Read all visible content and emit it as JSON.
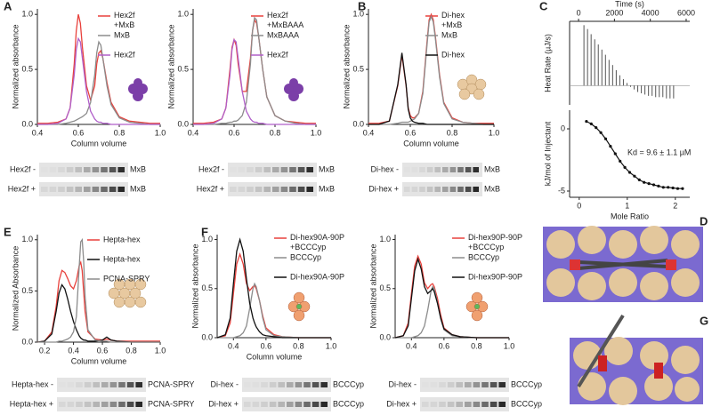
{
  "panel_labels": [
    "A",
    "B",
    "C",
    "D",
    "E",
    "F",
    "G"
  ],
  "chart_data": [
    {
      "type": "line",
      "x": [
        0.4,
        0.45,
        0.5,
        0.54,
        0.56,
        0.58,
        0.59,
        0.6,
        0.61,
        0.62,
        0.64,
        0.66,
        0.68,
        0.69,
        0.7,
        0.71,
        0.72,
        0.74,
        0.76,
        0.8,
        0.85,
        0.9,
        0.95,
        1.0
      ],
      "xlim": [
        0.4,
        1.0
      ],
      "ylim": [
        0,
        1.05
      ],
      "xticks": [
        0.4,
        0.6,
        0.8,
        {
          "value": 1,
          "label": "1.0"
        }
      ],
      "yticks": [
        {
          "value": 0,
          "label": "0.0"
        },
        0.5,
        {
          "value": 1,
          "label": "1.0"
        }
      ],
      "xlabel": "Column volume",
      "ylabel": "Normalized absorbance",
      "series": [
        {
          "name": "Hex2f +MxB",
          "color": "#e8413c",
          "values": [
            0.01,
            0.01,
            0.02,
            0.05,
            0.15,
            0.55,
            0.85,
            1.0,
            0.92,
            0.7,
            0.35,
            0.22,
            0.35,
            0.55,
            0.65,
            0.67,
            0.6,
            0.38,
            0.2,
            0.07,
            0.03,
            0.02,
            0.01,
            0.01
          ]
        },
        {
          "name": "MxB",
          "color": "#8c8c8c",
          "values": [
            0,
            0,
            0,
            0.01,
            0.02,
            0.03,
            0.04,
            0.05,
            0.06,
            0.07,
            0.1,
            0.2,
            0.45,
            0.65,
            0.75,
            0.72,
            0.6,
            0.35,
            0.18,
            0.06,
            0.02,
            0.01,
            0,
            0
          ]
        },
        {
          "name": "Hex2f",
          "color": "#b05fc9",
          "values": [
            0,
            0,
            0.01,
            0.05,
            0.15,
            0.45,
            0.68,
            0.78,
            0.75,
            0.6,
            0.3,
            0.12,
            0.05,
            0.03,
            0.02,
            0.02,
            0.01,
            0.01,
            0,
            0,
            0,
            0,
            0,
            0
          ]
        }
      ]
    },
    {
      "type": "line",
      "x": [
        0.4,
        0.45,
        0.5,
        0.54,
        0.56,
        0.58,
        0.59,
        0.6,
        0.61,
        0.62,
        0.64,
        0.66,
        0.68,
        0.69,
        0.7,
        0.71,
        0.72,
        0.74,
        0.76,
        0.8,
        0.85,
        0.9,
        0.95,
        1.0
      ],
      "xlim": [
        0.4,
        1.0
      ],
      "ylim": [
        0,
        1.05
      ],
      "xticks": [
        0.4,
        0.6,
        0.8,
        {
          "value": 1,
          "label": "1.0"
        }
      ],
      "yticks": [
        {
          "value": 0,
          "label": "0.0"
        },
        0.5,
        {
          "value": 1,
          "label": "1.0"
        }
      ],
      "ylabel": "Normalized absorbance",
      "series": [
        {
          "name": "Hex2f +MxBAAA",
          "color": "#e8413c",
          "values": [
            0.01,
            0.01,
            0.02,
            0.05,
            0.15,
            0.5,
            0.7,
            0.77,
            0.72,
            0.55,
            0.3,
            0.3,
            0.6,
            0.85,
            0.95,
            0.92,
            0.8,
            0.5,
            0.25,
            0.08,
            0.03,
            0.02,
            0.01,
            0.01
          ]
        },
        {
          "name": "MxBAAA",
          "color": "#8c8c8c",
          "values": [
            0,
            0,
            0,
            0.01,
            0.01,
            0.02,
            0.02,
            0.03,
            0.03,
            0.04,
            0.08,
            0.2,
            0.55,
            0.85,
            0.97,
            0.95,
            0.8,
            0.5,
            0.25,
            0.08,
            0.03,
            0.01,
            0,
            0
          ]
        },
        {
          "name": "Hex2f",
          "color": "#b05fc9",
          "values": [
            0,
            0,
            0.01,
            0.05,
            0.15,
            0.45,
            0.68,
            0.77,
            0.75,
            0.6,
            0.3,
            0.12,
            0.05,
            0.03,
            0.02,
            0.02,
            0.01,
            0.01,
            0,
            0,
            0,
            0,
            0,
            0
          ]
        }
      ]
    },
    {
      "type": "line",
      "x": [
        0.4,
        0.45,
        0.5,
        0.54,
        0.56,
        0.58,
        0.59,
        0.6,
        0.61,
        0.62,
        0.64,
        0.66,
        0.68,
        0.69,
        0.7,
        0.71,
        0.72,
        0.74,
        0.76,
        0.8,
        0.85,
        0.9,
        0.95,
        1.0
      ],
      "xlim": [
        0.4,
        1.0
      ],
      "ylim": [
        0,
        1.05
      ],
      "xticks": [
        0.4,
        0.6,
        0.8,
        {
          "value": 1,
          "label": "1.0"
        }
      ],
      "yticks": [
        {
          "value": 0,
          "label": "0.0"
        },
        0.5,
        {
          "value": 1,
          "label": "1.0"
        }
      ],
      "xlabel": "Column volume",
      "ylabel": "Normalized absorbance",
      "series": [
        {
          "name": "Di-hex +MxB",
          "color": "#e8413c",
          "values": [
            0.01,
            0.01,
            0.03,
            0.35,
            0.63,
            0.35,
            0.15,
            0.08,
            0.06,
            0.06,
            0.1,
            0.3,
            0.75,
            0.95,
            1.0,
            0.95,
            0.8,
            0.45,
            0.2,
            0.06,
            0.02,
            0.01,
            0.01,
            0.01
          ]
        },
        {
          "name": "MxB",
          "color": "#8c8c8c",
          "values": [
            0,
            0,
            0,
            0.01,
            0.02,
            0.02,
            0.02,
            0.03,
            0.04,
            0.05,
            0.1,
            0.28,
            0.72,
            0.93,
            0.98,
            0.93,
            0.78,
            0.43,
            0.19,
            0.05,
            0.02,
            0.01,
            0,
            0
          ]
        },
        {
          "name": "Di-hex",
          "color": "#111111",
          "values": [
            0,
            0,
            0.03,
            0.36,
            0.65,
            0.36,
            0.14,
            0.06,
            0.03,
            0.02,
            0.01,
            0.01,
            0,
            0,
            0,
            0,
            0,
            0,
            0,
            0,
            0,
            0,
            0,
            0
          ]
        }
      ]
    },
    {
      "type": "spike",
      "x": [
        300,
        500,
        700,
        900,
        1100,
        1300,
        1500,
        1700,
        1900,
        2100,
        2300,
        2500,
        2700,
        2900,
        3100,
        3300,
        3500,
        3700,
        3900,
        4100,
        4300,
        4500,
        4700,
        4900,
        5100,
        5300
      ],
      "values": [
        0.47,
        0.44,
        0.4,
        0.36,
        0.32,
        0.28,
        0.24,
        0.2,
        0.16,
        0.12,
        0.08,
        0.05,
        0.02,
        -0.01,
        -0.03,
        -0.05,
        -0.06,
        -0.07,
        -0.08,
        -0.08,
        -0.09,
        -0.09,
        -0.09,
        -0.1,
        -0.1,
        -0.1
      ],
      "color": "#555555",
      "xlim": [
        -500,
        6200
      ],
      "ylim": [
        -0.15,
        0.5
      ],
      "xticks": [
        0,
        2000,
        4000,
        6000
      ],
      "xlabel": "Time (s)",
      "ylabel": "Heat Rate (µJ/s)"
    },
    {
      "type": "scatter",
      "x": [
        0.15,
        0.25,
        0.35,
        0.45,
        0.55,
        0.65,
        0.75,
        0.85,
        0.95,
        1.05,
        1.15,
        1.25,
        1.35,
        1.45,
        1.55,
        1.65,
        1.75,
        1.85,
        1.95,
        2.05,
        2.15
      ],
      "values": [
        0.6,
        0.4,
        0.1,
        -0.3,
        -0.8,
        -1.4,
        -2.0,
        -2.6,
        -3.1,
        -3.5,
        -3.8,
        -4.1,
        -4.3,
        -4.4,
        -4.5,
        -4.6,
        -4.7,
        -4.7,
        -4.75,
        -4.8,
        -4.8
      ],
      "color": "#111111",
      "xlim": [
        -0.2,
        2.3
      ],
      "ylim": [
        -5.5,
        1.5
      ],
      "xticks": [
        0,
        1,
        2
      ],
      "yticks": [
        0,
        -5
      ],
      "xlabel": "Mole Ratio",
      "ylabel": "kJ/mol of Injectant",
      "annotation": "Kd = 9.6 ± 1.1 µM"
    },
    {
      "type": "line",
      "x": [
        0.15,
        0.2,
        0.25,
        0.28,
        0.3,
        0.32,
        0.34,
        0.36,
        0.38,
        0.4,
        0.42,
        0.44,
        0.45,
        0.46,
        0.47,
        0.48,
        0.5,
        0.55,
        0.6,
        0.63,
        0.66,
        0.7,
        0.8,
        0.9,
        1.0
      ],
      "xlim": [
        0.15,
        1.0
      ],
      "ylim": [
        0,
        1.05
      ],
      "xticks": [
        0.2,
        0.4,
        0.6,
        0.8,
        {
          "value": 1,
          "label": "1.0"
        }
      ],
      "yticks": [
        {
          "value": 0,
          "label": "0.0"
        },
        0.5,
        {
          "value": 1,
          "label": "1.0"
        }
      ],
      "xlabel": "Column volume",
      "ylabel": "Normalized Absorbance",
      "series": [
        {
          "name": "Hepta-hex",
          "color": "#e8413c",
          "values": [
            0,
            0.01,
            0.1,
            0.35,
            0.6,
            0.7,
            0.68,
            0.62,
            0.55,
            0.52,
            0.6,
            0.75,
            0.78,
            0.7,
            0.5,
            0.3,
            0.1,
            0.03,
            0.02,
            0.03,
            0.02,
            0.01,
            0.01,
            0.01,
            0.01
          ]
        },
        {
          "name": "Hepta-hex",
          "color": "#111111",
          "values": [
            0,
            0.01,
            0.08,
            0.3,
            0.48,
            0.56,
            0.52,
            0.42,
            0.3,
            0.2,
            0.12,
            0.06,
            0.04,
            0.03,
            0.02,
            0.02,
            0.01,
            0.01,
            0.02,
            0.05,
            0.02,
            0.01,
            0,
            0,
            0
          ]
        },
        {
          "name": "PCNA-SPRY",
          "color": "#8c8c8c",
          "values": [
            0,
            0,
            0,
            0,
            0.01,
            0.01,
            0.02,
            0.03,
            0.05,
            0.1,
            0.25,
            0.75,
            0.98,
            1.0,
            0.8,
            0.45,
            0.12,
            0.02,
            0.01,
            0.01,
            0,
            0,
            0,
            0,
            0
          ]
        }
      ]
    },
    {
      "type": "line",
      "x": [
        0.3,
        0.35,
        0.38,
        0.4,
        0.42,
        0.44,
        0.46,
        0.48,
        0.5,
        0.52,
        0.53,
        0.54,
        0.56,
        0.58,
        0.6,
        0.65,
        0.7,
        0.8,
        0.9,
        1.0
      ],
      "xlim": [
        0.3,
        1.0
      ],
      "ylim": [
        0,
        1.05
      ],
      "xticks": [
        0.4,
        0.6,
        0.8,
        {
          "value": 1,
          "label": "1.0"
        }
      ],
      "yticks": [
        {
          "value": 0,
          "label": "0.0"
        },
        0.5,
        {
          "value": 1,
          "label": "1.0"
        }
      ],
      "xlabel": "Column volume",
      "ylabel": "Normalized absorbance",
      "series": [
        {
          "name": "Di-hex90A-90P +BCCCyp",
          "color": "#e8413c",
          "values": [
            0,
            0.02,
            0.15,
            0.45,
            0.75,
            0.85,
            0.75,
            0.55,
            0.48,
            0.52,
            0.53,
            0.5,
            0.38,
            0.22,
            0.1,
            0.03,
            0.01,
            0,
            0,
            0
          ]
        },
        {
          "name": "BCCCyp",
          "color": "#8c8c8c",
          "values": [
            0,
            0,
            0,
            0,
            0.01,
            0.02,
            0.05,
            0.12,
            0.3,
            0.5,
            0.55,
            0.52,
            0.38,
            0.2,
            0.08,
            0.02,
            0.01,
            0,
            0,
            0
          ]
        },
        {
          "name": "Di-hex90A-90P",
          "color": "#111111",
          "values": [
            0,
            0.03,
            0.2,
            0.55,
            0.88,
            1.0,
            0.88,
            0.6,
            0.35,
            0.2,
            0.15,
            0.11,
            0.06,
            0.03,
            0.02,
            0.01,
            0,
            0,
            0,
            0
          ]
        }
      ]
    },
    {
      "type": "line",
      "x": [
        0.3,
        0.35,
        0.38,
        0.4,
        0.42,
        0.44,
        0.46,
        0.48,
        0.5,
        0.52,
        0.53,
        0.54,
        0.56,
        0.58,
        0.6,
        0.65,
        0.7,
        0.8,
        0.9,
        1.0
      ],
      "xlim": [
        0.3,
        1.0
      ],
      "ylim": [
        0,
        1.05
      ],
      "xticks": [
        0.4,
        0.6,
        0.8,
        {
          "value": 1,
          "label": "1.0"
        }
      ],
      "yticks": [
        {
          "value": 0,
          "label": "0.0"
        },
        0.5,
        {
          "value": 1,
          "label": "1.0"
        }
      ],
      "ylabel": "Normalized absorbance",
      "series": [
        {
          "name": "Di-hex90P-90P +BCCCyp",
          "color": "#e8413c",
          "values": [
            0,
            0.02,
            0.15,
            0.45,
            0.73,
            0.83,
            0.75,
            0.56,
            0.5,
            0.54,
            0.55,
            0.52,
            0.4,
            0.23,
            0.1,
            0.03,
            0.01,
            0,
            0,
            0
          ]
        },
        {
          "name": "BCCCyp",
          "color": "#8c8c8c",
          "values": [
            0,
            0,
            0,
            0,
            0.01,
            0.02,
            0.05,
            0.12,
            0.28,
            0.47,
            0.52,
            0.5,
            0.36,
            0.19,
            0.08,
            0.02,
            0.01,
            0,
            0,
            0
          ]
        },
        {
          "name": "Di-hex90P-90P",
          "color": "#111111",
          "values": [
            0,
            0.02,
            0.12,
            0.4,
            0.68,
            0.8,
            0.7,
            0.52,
            0.45,
            0.48,
            0.5,
            0.47,
            0.35,
            0.2,
            0.09,
            0.03,
            0.01,
            0,
            0,
            0
          ]
        }
      ]
    }
  ],
  "gels": [
    {
      "rows": [
        "Hex2f -",
        "Hex2f +"
      ],
      "markers": [
        "MxB",
        "MxB"
      ]
    },
    {
      "rows": [
        "Hex2f -",
        "Hex2f +"
      ],
      "markers": [
        "MxB",
        "MxB"
      ]
    },
    {
      "rows": [
        "Di-hex -",
        "Di-hex +"
      ],
      "markers": [
        "MxB",
        "MxB"
      ]
    },
    {
      "rows": [
        "Hepta-hex -",
        "Hepta-hex +"
      ],
      "markers": [
        "PCNA-SPRY",
        "PCNA-SPRY"
      ]
    },
    {
      "rows": [
        "Di-hex -",
        "Di-hex +"
      ],
      "markers": [
        "BCCCyp",
        "BCCCyp"
      ]
    },
    {
      "rows": [
        "Di-hex -",
        "Di-hex +"
      ],
      "markers": [
        "BCCCyp",
        "BCCCyp"
      ]
    }
  ]
}
